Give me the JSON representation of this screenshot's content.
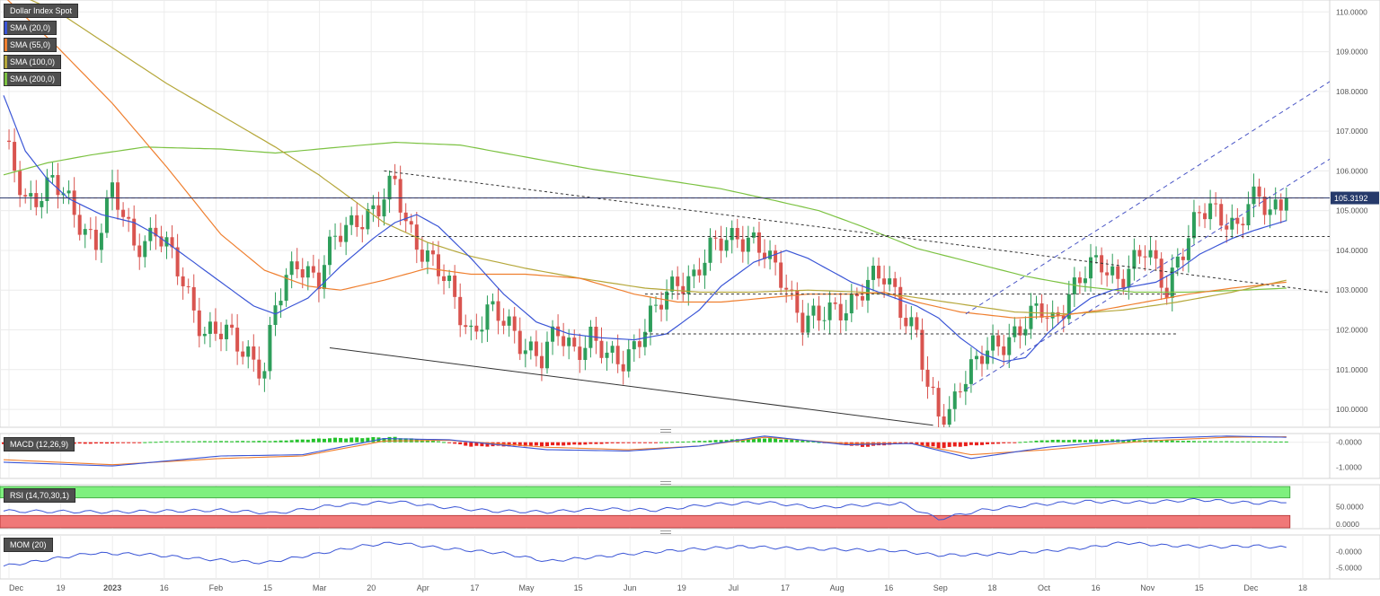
{
  "colors": {
    "up": "#2e9e5b",
    "down": "#d9544f",
    "sma20": "#3a55d6",
    "sma55": "#ef7f2f",
    "sma100": "#b5a73a",
    "sma200": "#7cc242",
    "macd_line": "#3a55d6",
    "macd_signal": "#ef7f2f",
    "hist_pos": "#22c22a",
    "hist_neg": "#e8201c",
    "rsi_line": "#3a55d6",
    "rsi_over": "#7ef07e",
    "rsi_under": "#f07878",
    "mom_line": "#3a55d6",
    "resistance": "#e07b35",
    "trendline": "#333333",
    "channel": "#4a56c6",
    "grid": "#ececec"
  },
  "panels": {
    "price_title": "Dollar Index Spot",
    "macd_title": "MACD (12,26,9)",
    "rsi_title": "RSI (14,70,30,1)",
    "mom_title": "MOM (20)"
  },
  "legend": [
    {
      "label": "SMA (20,0)",
      "color_key": "sma20"
    },
    {
      "label": "SMA (55,0)",
      "color_key": "sma55"
    },
    {
      "label": "SMA (100,0)",
      "color_key": "sma100"
    },
    {
      "label": "SMA (200,0)",
      "color_key": "sma200"
    }
  ],
  "chart_data": {
    "type": "candlestick",
    "instrument": "Dollar Index Spot",
    "interval": "daily",
    "last_price": "105.3192",
    "ylim": [
      99.55,
      110.3
    ],
    "y_ticks": [
      "110.0000",
      "109.0000",
      "108.0000",
      "107.0000",
      "106.0000",
      "105.0000",
      "104.0000",
      "103.0000",
      "102.0000",
      "101.0000",
      "100.0000"
    ],
    "x_ticks": [
      "Dec",
      "19",
      "2023",
      "16",
      "Feb",
      "15",
      "Mar",
      "20",
      "Apr",
      "17",
      "May",
      "15",
      "Jun",
      "19",
      "Jul",
      "17",
      "Aug",
      "16",
      "Sep",
      "18",
      "Oct",
      "16",
      "Nov",
      "15",
      "Dec",
      "18"
    ],
    "price_path": [
      [
        0,
        106.6
      ],
      [
        4,
        105.3
      ],
      [
        9,
        105.7
      ],
      [
        13,
        104.9
      ],
      [
        17,
        104.3
      ],
      [
        20,
        105.4
      ],
      [
        24,
        104.2
      ],
      [
        28,
        104.5
      ],
      [
        33,
        103.2
      ],
      [
        37,
        102.0
      ],
      [
        41,
        101.8
      ],
      [
        45,
        101.5
      ],
      [
        48,
        101.0
      ],
      [
        50,
        102.5
      ],
      [
        54,
        103.8
      ],
      [
        58,
        103.3
      ],
      [
        61,
        104.2
      ],
      [
        65,
        104.9
      ],
      [
        69,
        105.0
      ],
      [
        72,
        105.65
      ],
      [
        74,
        104.8
      ],
      [
        76,
        104.3
      ],
      [
        79,
        103.6
      ],
      [
        82,
        103.0
      ],
      [
        86,
        102.0
      ],
      [
        89,
        102.4
      ],
      [
        93,
        102.1
      ],
      [
        96,
        101.7
      ],
      [
        99,
        101.2
      ],
      [
        102,
        101.9
      ],
      [
        105,
        101.6
      ],
      [
        108,
        101.8
      ],
      [
        111,
        101.2
      ],
      [
        114,
        101.3
      ],
      [
        117,
        101.9
      ],
      [
        120,
        102.4
      ],
      [
        124,
        103.3
      ],
      [
        127,
        103.4
      ],
      [
        130,
        103.9
      ],
      [
        133,
        104.3
      ],
      [
        135,
        104.5
      ],
      [
        138,
        104.2
      ],
      [
        141,
        103.6
      ],
      [
        144,
        103.2
      ],
      [
        147,
        102.3
      ],
      [
        150,
        102.2
      ],
      [
        153,
        102.5
      ],
      [
        156,
        102.8
      ],
      [
        159,
        103.1
      ],
      [
        162,
        103.3
      ],
      [
        164,
        103.0
      ],
      [
        166,
        102.4
      ],
      [
        168,
        101.9
      ],
      [
        170,
        100.4
      ],
      [
        172,
        99.8
      ],
      [
        174,
        100.0
      ],
      [
        176,
        100.8
      ],
      [
        179,
        101.1
      ],
      [
        182,
        101.5
      ],
      [
        185,
        101.9
      ],
      [
        188,
        102.2
      ],
      [
        191,
        102.4
      ],
      [
        193,
        102.2
      ],
      [
        196,
        103.0
      ],
      [
        199,
        103.4
      ],
      [
        202,
        103.6
      ],
      [
        205,
        103.4
      ],
      [
        208,
        103.7
      ],
      [
        210,
        103.9
      ],
      [
        212,
        103.5
      ],
      [
        214,
        103.1
      ],
      [
        216,
        103.9
      ],
      [
        218,
        104.3
      ],
      [
        220,
        104.8
      ],
      [
        222,
        105.0
      ],
      [
        225,
        104.9
      ],
      [
        227,
        104.6
      ],
      [
        229,
        105.1
      ],
      [
        231,
        105.2
      ],
      [
        233,
        105.0
      ],
      [
        235,
        105.32
      ]
    ],
    "sma20_path": [
      [
        0,
        107.9
      ],
      [
        4,
        106.5
      ],
      [
        8,
        105.8
      ],
      [
        12,
        105.3
      ],
      [
        18,
        104.9
      ],
      [
        24,
        104.7
      ],
      [
        28,
        104.4
      ],
      [
        34,
        103.8
      ],
      [
        40,
        103.2
      ],
      [
        46,
        102.6
      ],
      [
        50,
        102.4
      ],
      [
        56,
        102.8
      ],
      [
        62,
        103.6
      ],
      [
        68,
        104.3
      ],
      [
        72,
        104.7
      ],
      [
        76,
        104.9
      ],
      [
        80,
        104.6
      ],
      [
        86,
        103.8
      ],
      [
        92,
        102.9
      ],
      [
        98,
        102.2
      ],
      [
        104,
        101.9
      ],
      [
        110,
        101.8
      ],
      [
        116,
        101.75
      ],
      [
        122,
        101.9
      ],
      [
        128,
        102.5
      ],
      [
        132,
        103.1
      ],
      [
        138,
        103.7
      ],
      [
        144,
        104.0
      ],
      [
        148,
        103.8
      ],
      [
        152,
        103.5
      ],
      [
        156,
        103.2
      ],
      [
        160,
        103.0
      ],
      [
        164,
        102.8
      ],
      [
        168,
        102.6
      ],
      [
        172,
        102.3
      ],
      [
        176,
        101.8
      ],
      [
        180,
        101.4
      ],
      [
        184,
        101.2
      ],
      [
        188,
        101.3
      ],
      [
        192,
        101.9
      ],
      [
        196,
        102.4
      ],
      [
        200,
        102.8
      ],
      [
        204,
        103.0
      ],
      [
        208,
        103.1
      ],
      [
        212,
        103.2
      ],
      [
        216,
        103.5
      ],
      [
        220,
        103.9
      ],
      [
        226,
        104.3
      ],
      [
        230,
        104.5
      ],
      [
        236,
        104.75
      ]
    ],
    "sma55_path": [
      [
        0,
        110.4
      ],
      [
        10,
        109.1
      ],
      [
        20,
        107.7
      ],
      [
        30,
        106.1
      ],
      [
        40,
        104.4
      ],
      [
        48,
        103.5
      ],
      [
        56,
        103.1
      ],
      [
        62,
        103.0
      ],
      [
        70,
        103.25
      ],
      [
        78,
        103.55
      ],
      [
        86,
        103.4
      ],
      [
        96,
        103.4
      ],
      [
        106,
        103.3
      ],
      [
        116,
        102.9
      ],
      [
        124,
        102.7
      ],
      [
        132,
        102.7
      ],
      [
        140,
        102.8
      ],
      [
        148,
        102.9
      ],
      [
        156,
        102.9
      ],
      [
        162,
        102.95
      ],
      [
        168,
        102.7
      ],
      [
        176,
        102.45
      ],
      [
        186,
        102.3
      ],
      [
        194,
        102.35
      ],
      [
        202,
        102.5
      ],
      [
        210,
        102.7
      ],
      [
        218,
        102.9
      ],
      [
        226,
        103.05
      ],
      [
        236,
        103.2
      ]
    ],
    "sma100_path": [
      [
        0,
        110.6
      ],
      [
        10,
        110.0
      ],
      [
        20,
        109.1
      ],
      [
        30,
        108.2
      ],
      [
        40,
        107.4
      ],
      [
        50,
        106.6
      ],
      [
        58,
        105.9
      ],
      [
        64,
        105.3
      ],
      [
        70,
        104.7
      ],
      [
        78,
        104.2
      ],
      [
        86,
        103.85
      ],
      [
        96,
        103.55
      ],
      [
        106,
        103.3
      ],
      [
        118,
        103.05
      ],
      [
        128,
        102.95
      ],
      [
        138,
        102.95
      ],
      [
        148,
        103.0
      ],
      [
        158,
        102.95
      ],
      [
        166,
        102.85
      ],
      [
        176,
        102.65
      ],
      [
        186,
        102.45
      ],
      [
        196,
        102.4
      ],
      [
        206,
        102.5
      ],
      [
        216,
        102.7
      ],
      [
        226,
        102.95
      ],
      [
        236,
        103.25
      ]
    ],
    "sma200_path": [
      [
        0,
        105.9
      ],
      [
        8,
        106.2
      ],
      [
        16,
        106.4
      ],
      [
        26,
        106.6
      ],
      [
        40,
        106.55
      ],
      [
        50,
        106.45
      ],
      [
        62,
        106.6
      ],
      [
        72,
        106.72
      ],
      [
        84,
        106.65
      ],
      [
        96,
        106.35
      ],
      [
        108,
        106.05
      ],
      [
        120,
        105.8
      ],
      [
        132,
        105.55
      ],
      [
        142,
        105.25
      ],
      [
        150,
        105.0
      ],
      [
        158,
        104.6
      ],
      [
        168,
        104.05
      ],
      [
        178,
        103.7
      ],
      [
        188,
        103.35
      ],
      [
        198,
        103.1
      ],
      [
        208,
        102.95
      ],
      [
        218,
        102.95
      ],
      [
        228,
        103.0
      ],
      [
        236,
        103.05
      ]
    ],
    "levels": [
      {
        "name": "resistance",
        "y": 105.32,
        "x": [
          5,
          243
        ]
      },
      {
        "name": "range-high",
        "y": 104.35,
        "x": [
          69,
          249
        ]
      },
      {
        "name": "range-mid",
        "y": 102.9,
        "x": [
          118,
          216
        ]
      },
      {
        "name": "range-low",
        "y": 101.9,
        "x": [
          118,
          216
        ]
      }
    ],
    "trendlines": [
      {
        "name": "descending-resistance",
        "x1": 70,
        "y1": 106.0,
        "x2": 300,
        "y2": 101.95,
        "style": "dotted"
      },
      {
        "name": "descending-support",
        "x1": 60,
        "y1": 101.55,
        "x2": 171,
        "y2": 99.6,
        "style": "solid"
      },
      {
        "name": "channel-upper",
        "x1": 177,
        "y1": 102.4,
        "x2": 244,
        "y2": 108.25,
        "style": "dashed"
      },
      {
        "name": "channel-lower",
        "x1": 177,
        "y1": 100.5,
        "x2": 244,
        "y2": 106.3,
        "style": "dashed"
      }
    ],
    "macd": {
      "ylim": [
        -1.45,
        0.35
      ],
      "y_ticks": [
        "-0.0000",
        "-1.0000"
      ],
      "macd_path": [
        [
          0,
          -0.8
        ],
        [
          20,
          -0.95
        ],
        [
          40,
          -0.55
        ],
        [
          55,
          -0.5
        ],
        [
          70,
          0.15
        ],
        [
          82,
          0.1
        ],
        [
          100,
          -0.3
        ],
        [
          115,
          -0.35
        ],
        [
          128,
          -0.15
        ],
        [
          140,
          0.25
        ],
        [
          155,
          -0.1
        ],
        [
          167,
          -0.05
        ],
        [
          178,
          -0.65
        ],
        [
          192,
          -0.2
        ],
        [
          210,
          0.15
        ],
        [
          225,
          0.25
        ],
        [
          236,
          0.2
        ]
      ],
      "signal_path": [
        [
          0,
          -0.7
        ],
        [
          20,
          -0.9
        ],
        [
          40,
          -0.65
        ],
        [
          55,
          -0.55
        ],
        [
          70,
          0.05
        ],
        [
          82,
          0.08
        ],
        [
          100,
          -0.2
        ],
        [
          115,
          -0.3
        ],
        [
          128,
          -0.15
        ],
        [
          140,
          0.2
        ],
        [
          155,
          -0.05
        ],
        [
          167,
          -0.05
        ],
        [
          178,
          -0.5
        ],
        [
          192,
          -0.3
        ],
        [
          210,
          0.05
        ],
        [
          225,
          0.2
        ],
        [
          236,
          0.22
        ]
      ],
      "hist_path": [
        [
          0,
          -0.1
        ],
        [
          20,
          -0.05
        ],
        [
          30,
          0.04
        ],
        [
          50,
          0.06
        ],
        [
          60,
          0.18
        ],
        [
          72,
          0.22
        ],
        [
          80,
          0.05
        ],
        [
          86,
          -0.18
        ],
        [
          100,
          -0.16
        ],
        [
          112,
          -0.05
        ],
        [
          125,
          0.03
        ],
        [
          140,
          0.18
        ],
        [
          148,
          0.06
        ],
        [
          158,
          -0.2
        ],
        [
          166,
          -0.05
        ],
        [
          172,
          -0.25
        ],
        [
          182,
          -0.08
        ],
        [
          192,
          0.1
        ],
        [
          206,
          0.12
        ],
        [
          220,
          0.05
        ],
        [
          236,
          0.03
        ]
      ]
    },
    "rsi": {
      "ylim": [
        0,
        100
      ],
      "y_ticks": [
        "50.0000",
        "0.0000"
      ],
      "overbought": 70,
      "oversold": 30,
      "rsi_path": [
        [
          0,
          40
        ],
        [
          20,
          38
        ],
        [
          40,
          42
        ],
        [
          50,
          35
        ],
        [
          60,
          52
        ],
        [
          72,
          62
        ],
        [
          80,
          50
        ],
        [
          90,
          40
        ],
        [
          100,
          38
        ],
        [
          110,
          45
        ],
        [
          120,
          42
        ],
        [
          130,
          55
        ],
        [
          140,
          60
        ],
        [
          150,
          48
        ],
        [
          160,
          55
        ],
        [
          165,
          58
        ],
        [
          172,
          22
        ],
        [
          180,
          42
        ],
        [
          190,
          55
        ],
        [
          200,
          62
        ],
        [
          210,
          60
        ],
        [
          220,
          66
        ],
        [
          230,
          58
        ],
        [
          236,
          62
        ]
      ]
    },
    "mom": {
      "ylim": [
        -8.5,
        5.2
      ],
      "y_ticks": [
        "-0.0000",
        "-5.0000"
      ],
      "mom_path": [
        [
          0,
          -4.5
        ],
        [
          8,
          -2.5
        ],
        [
          16,
          -0.5
        ],
        [
          26,
          -0.8
        ],
        [
          36,
          -2.2
        ],
        [
          48,
          -3.5
        ],
        [
          56,
          -1.2
        ],
        [
          66,
          1.8
        ],
        [
          72,
          2.8
        ],
        [
          80,
          1.2
        ],
        [
          92,
          -0.5
        ],
        [
          100,
          -3.0
        ],
        [
          108,
          -1.8
        ],
        [
          116,
          -0.6
        ],
        [
          126,
          0.7
        ],
        [
          136,
          1.6
        ],
        [
          146,
          1.0
        ],
        [
          156,
          0.6
        ],
        [
          164,
          0.3
        ],
        [
          172,
          -1.1
        ],
        [
          182,
          -0.8
        ],
        [
          192,
          0.2
        ],
        [
          200,
          1.4
        ],
        [
          206,
          2.8
        ],
        [
          214,
          1.9
        ],
        [
          224,
          1.5
        ],
        [
          230,
          1.8
        ],
        [
          236,
          1.2
        ]
      ]
    }
  }
}
